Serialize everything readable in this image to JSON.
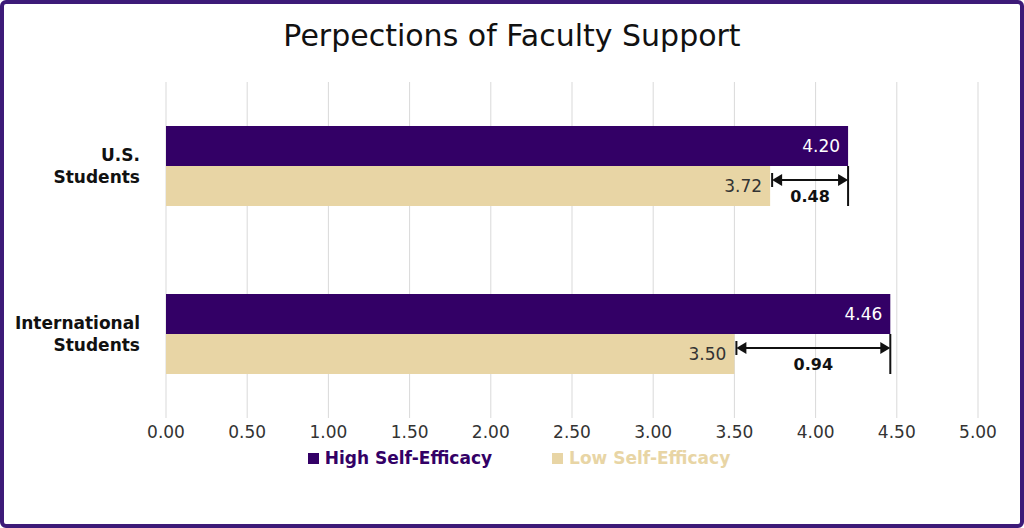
{
  "chart_data": {
    "type": "bar",
    "title": "Perpections of Faculty Support",
    "orientation": "horizontal",
    "categories": [
      "U.S. Students",
      "International Students"
    ],
    "series": [
      {
        "name": "High Self-Efficacy",
        "color": "#330066",
        "values": [
          4.2,
          4.46
        ],
        "value_labels": [
          "4.20",
          "4.46"
        ]
      },
      {
        "name": "Low Self-Efficacy",
        "color": "#e8d5a5",
        "values": [
          3.72,
          3.5
        ],
        "value_labels": [
          "3.72",
          "3.50"
        ]
      }
    ],
    "xlim": [
      0,
      5
    ],
    "xticks": [
      {
        "value": 0,
        "label": "0.00"
      },
      {
        "value": 0.5,
        "label": "0.50"
      },
      {
        "value": 1,
        "label": "1.00"
      },
      {
        "value": 1.5,
        "label": "1.50"
      },
      {
        "value": 2,
        "label": "2.00"
      },
      {
        "value": 2.5,
        "label": "2.50"
      },
      {
        "value": 3,
        "label": "3.00"
      },
      {
        "value": 3.5,
        "label": "3.50"
      },
      {
        "value": 4,
        "label": "4.00"
      },
      {
        "value": 4.5,
        "label": "4.50"
      },
      {
        "value": 5,
        "label": "5.00"
      }
    ],
    "grid": true,
    "legend": "bottom",
    "data_labels": true,
    "annotations": [
      {
        "category": "U.S. Students",
        "text": "0.48"
      },
      {
        "category": "International Students",
        "text": "0.94"
      }
    ]
  }
}
